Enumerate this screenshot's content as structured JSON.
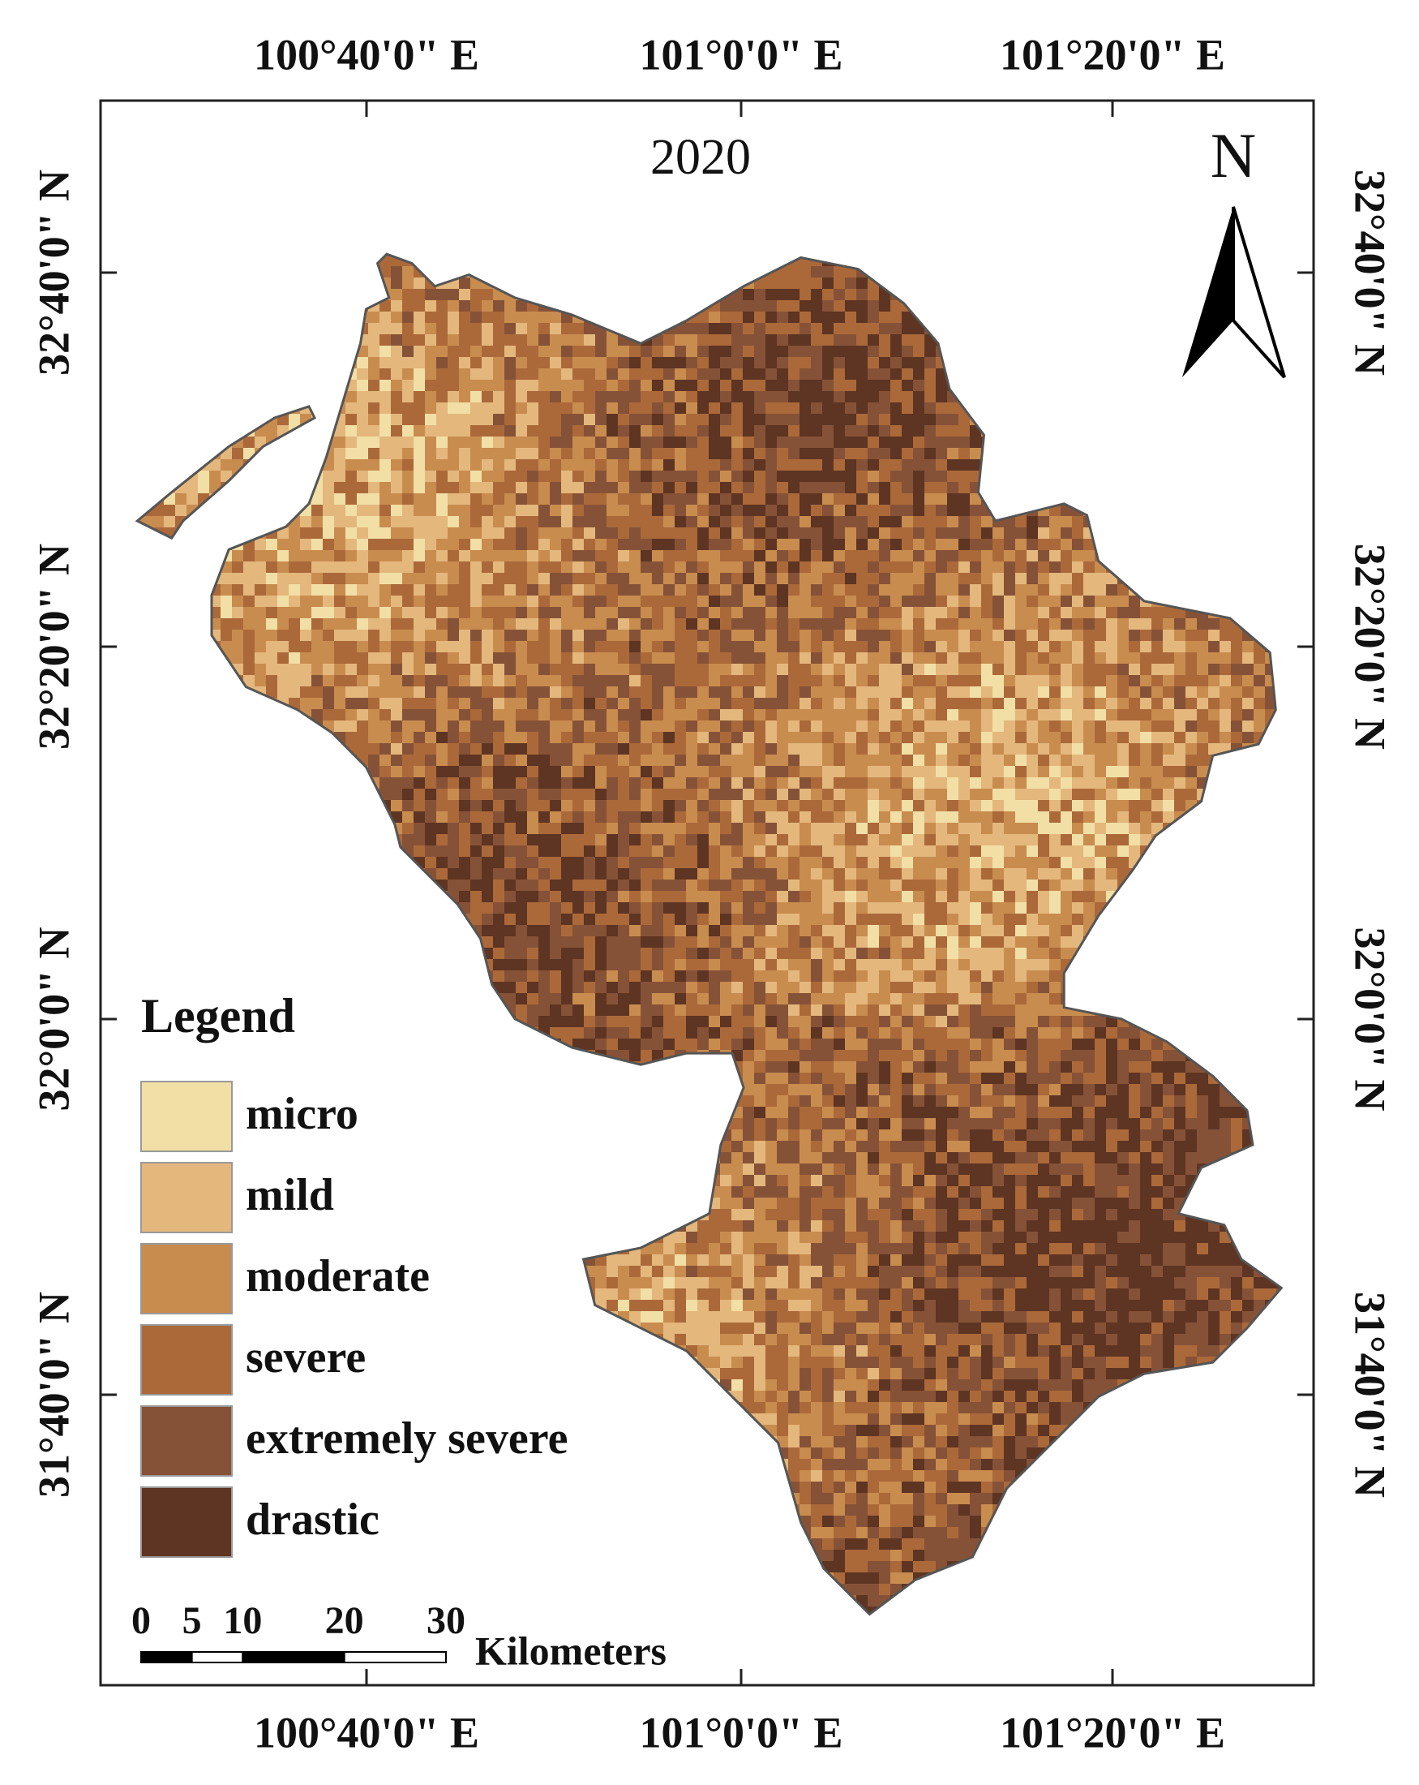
{
  "map": {
    "title": "2020",
    "north": "N",
    "top_labels": [
      "100°40'0\" E",
      "101°0'0\" E",
      "101°20'0\" E"
    ],
    "bottom_labels": [
      "100°40'0\" E",
      "101°0'0\" E",
      "101°20'0\" E"
    ],
    "left_labels": [
      "32°40'0\" N",
      "32°20'0\" N",
      "32°0'0\" N",
      "31°40'0\" N"
    ],
    "right_labels": [
      "32°40'0\" N",
      "32°20'0\" N",
      "32°0'0\" N",
      "31°40'0\" N"
    ],
    "legend": {
      "title": "Legend",
      "items": [
        {
          "label": "micro",
          "color": "#f2dfa5"
        },
        {
          "label": "mild",
          "color": "#e4b77d"
        },
        {
          "label": "moderate",
          "color": "#c98c4f"
        },
        {
          "label": "severe",
          "color": "#ab693a"
        },
        {
          "label": "extremely severe",
          "color": "#865237"
        },
        {
          "label": "drastic",
          "color": "#5e3422"
        }
      ]
    },
    "scale_bar": {
      "ticks": [
        0,
        5,
        10,
        20,
        30
      ],
      "unit": "Kilometers"
    }
  }
}
